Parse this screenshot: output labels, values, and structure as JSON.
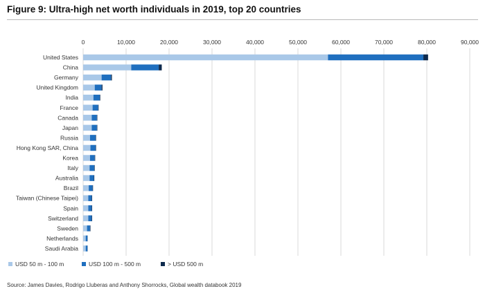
{
  "title": "Figure 9: Ultra-high net worth individuals in 2019, top 20 countries",
  "source": "Source: James Davies, Rodrigo Lluberas and Anthony Shorrocks, Global wealth databook 2019",
  "colors": {
    "USD 50 m - 100 m": "#a9c8e8",
    "USD 100 m - 500 m": "#1f6fbf",
    "> USD 500 m": "#0e2a4d",
    "grid": "#d9d9d9"
  },
  "chart_data": {
    "type": "bar",
    "orientation": "horizontal",
    "stacked": true,
    "title": "Figure 9: Ultra-high net worth individuals in 2019, top 20 countries",
    "xlabel": "",
    "ylabel": "",
    "xlim": [
      0,
      90000
    ],
    "x_ticks": [
      0,
      10000,
      20000,
      30000,
      40000,
      50000,
      60000,
      70000,
      80000,
      90000
    ],
    "x_tick_labels": [
      "0",
      "10,000",
      "20,000",
      "30,000",
      "40,000",
      "50,000",
      "60,000",
      "70,000",
      "80,000",
      "90,000"
    ],
    "x_axis_position": "top",
    "grid": true,
    "legend_position": "bottom-left",
    "categories": [
      "United States",
      "China",
      "Germany",
      "United Kingdom",
      "India",
      "France",
      "Canada",
      "Japan",
      "Russia",
      "Hong Kong SAR, China",
      "Korea",
      "Italy",
      "Australia",
      "Brazil",
      "Taiwan (Chinese Taipei)",
      "Spain",
      "Switzerland",
      "Sweden",
      "Netherlands",
      "Saudi Arabia"
    ],
    "series": [
      {
        "name": "USD 50 m - 100 m",
        "values": [
          57000,
          11200,
          4300,
          2700,
          2400,
          2200,
          2000,
          2000,
          1600,
          1700,
          1600,
          1500,
          1500,
          1300,
          1200,
          1200,
          1200,
          900,
          600,
          600
        ]
      },
      {
        "name": "USD 100 m - 500 m",
        "values": [
          22200,
          6400,
          2200,
          1600,
          1500,
          1300,
          1200,
          1200,
          1300,
          1200,
          1100,
          1100,
          1000,
          900,
          800,
          800,
          800,
          700,
          400,
          400
        ]
      },
      {
        "name": "> USD 500 m",
        "values": [
          1100,
          700,
          200,
          200,
          100,
          100,
          100,
          100,
          100,
          100,
          100,
          100,
          100,
          100,
          100,
          100,
          100,
          100,
          50,
          50
        ]
      }
    ]
  }
}
